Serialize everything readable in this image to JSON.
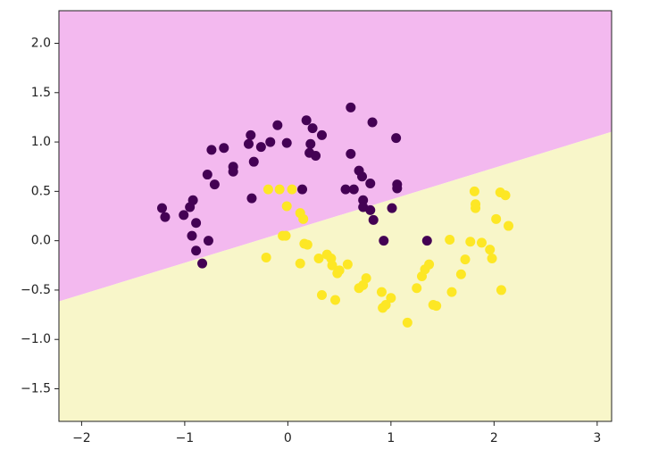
{
  "chart_data": {
    "type": "scatter",
    "xlim": [
      -2.22,
      3.14
    ],
    "ylim": [
      -1.83,
      2.33
    ],
    "xticks": [
      {
        "value": -2,
        "label": "−2"
      },
      {
        "value": -1,
        "label": "−1"
      },
      0,
      1,
      2,
      3
    ],
    "yticks": [
      {
        "value": -1.5,
        "label": "−1.5"
      },
      {
        "value": -1.0,
        "label": "−1.0"
      },
      {
        "value": -0.5,
        "label": "−0.5"
      },
      {
        "value": 0,
        "label": "0.0"
      },
      {
        "value": 0.5,
        "label": "0.5"
      },
      {
        "value": 1.0,
        "label": "1.0"
      },
      {
        "value": 1.5,
        "label": "1.5"
      },
      {
        "value": 2.0,
        "label": "2.0"
      }
    ],
    "boundary": {
      "x": [
        -2.22,
        3.14
      ],
      "values": [
        -0.615,
        1.103
      ],
      "colors": [
        "#f3b9ef",
        "#f8f6c9"
      ]
    },
    "series": [
      {
        "color": "#440154",
        "x": [
          -1.22,
          -1.19,
          -1.01,
          -0.95,
          -0.92,
          -0.89,
          -0.93,
          -0.89,
          -0.83,
          -0.77,
          -0.74,
          -0.71,
          -0.62,
          -0.78,
          -0.53,
          -0.53,
          -0.36,
          -0.38,
          -0.33,
          -0.26,
          -0.17,
          -0.1,
          -0.01,
          -0.35,
          0.14,
          0.18,
          0.24,
          0.33,
          0.22,
          0.21,
          0.27,
          0.61,
          0.61,
          0.69,
          0.72,
          0.56,
          0.64,
          0.8,
          0.82,
          0.73,
          0.73,
          0.8,
          0.83,
          1.05,
          1.06,
          1.06,
          1.01,
          0.93,
          1.35
        ],
        "values": [
          0.33,
          0.24,
          0.26,
          0.34,
          0.41,
          0.18,
          0.05,
          -0.1,
          -0.23,
          0.0,
          0.92,
          0.57,
          0.94,
          0.67,
          0.75,
          0.7,
          1.07,
          0.98,
          0.8,
          0.95,
          1.0,
          1.17,
          0.99,
          0.43,
          0.52,
          1.22,
          1.14,
          1.07,
          0.98,
          0.89,
          0.86,
          1.35,
          0.88,
          0.71,
          0.65,
          0.52,
          0.52,
          0.58,
          1.2,
          0.41,
          0.34,
          0.31,
          0.21,
          1.04,
          0.57,
          0.53,
          0.33,
          0.0,
          0.0
        ]
      },
      {
        "color": "#fde725",
        "x": [
          -0.19,
          -0.08,
          0.04,
          -0.01,
          0.12,
          0.15,
          -0.05,
          -0.02,
          0.16,
          0.19,
          -0.21,
          0.12,
          0.3,
          0.38,
          0.42,
          0.43,
          0.5,
          0.58,
          0.48,
          0.33,
          0.46,
          0.76,
          0.73,
          0.69,
          0.91,
          0.95,
          0.92,
          1.0,
          1.16,
          1.25,
          1.3,
          1.33,
          1.37,
          1.41,
          1.44,
          1.57,
          1.59,
          1.68,
          1.72,
          1.77,
          1.81,
          1.82,
          1.82,
          1.88,
          1.96,
          1.98,
          2.02,
          2.06,
          2.11,
          2.14,
          2.07
        ],
        "values": [
          0.52,
          0.52,
          0.52,
          0.35,
          0.28,
          0.22,
          0.05,
          0.05,
          -0.03,
          -0.04,
          -0.17,
          -0.23,
          -0.18,
          -0.14,
          -0.18,
          -0.25,
          -0.3,
          -0.24,
          -0.33,
          -0.55,
          -0.6,
          -0.38,
          -0.45,
          -0.48,
          -0.52,
          -0.65,
          -0.68,
          -0.58,
          -0.83,
          -0.48,
          -0.36,
          -0.29,
          -0.24,
          -0.65,
          -0.66,
          0.01,
          -0.52,
          -0.34,
          -0.19,
          -0.01,
          0.5,
          0.33,
          0.37,
          -0.02,
          -0.09,
          -0.18,
          0.22,
          0.49,
          0.46,
          0.15,
          -0.5
        ]
      }
    ]
  }
}
